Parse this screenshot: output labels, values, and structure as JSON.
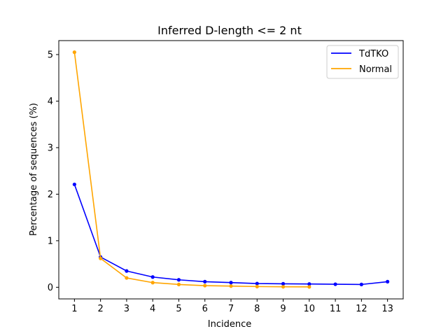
{
  "chart_data": {
    "type": "line",
    "title": "Inferred D-length <= 2 nt",
    "xlabel": "Incidence",
    "ylabel": "Percentage of sequences (%)",
    "xlim": [
      0.4,
      13.6
    ],
    "ylim": [
      -0.25,
      5.3
    ],
    "xticks": [
      1,
      2,
      3,
      4,
      5,
      6,
      7,
      8,
      9,
      10,
      11,
      12,
      13
    ],
    "yticks": [
      0,
      1,
      2,
      3,
      4,
      5
    ],
    "grid": false,
    "legend_position": "top-right",
    "series": [
      {
        "name": "TdTKO",
        "color": "#0000ff",
        "x": [
          1,
          2,
          3,
          4,
          5,
          6,
          7,
          8,
          9,
          10,
          11,
          12,
          13
        ],
        "y": [
          2.21,
          0.65,
          0.35,
          0.22,
          0.16,
          0.12,
          0.1,
          0.08,
          0.075,
          0.07,
          0.065,
          0.06,
          0.12
        ]
      },
      {
        "name": "Normal",
        "color": "#ffa500",
        "x": [
          1,
          2,
          3,
          4,
          5,
          6,
          7,
          8,
          9,
          10
        ],
        "y": [
          5.05,
          0.62,
          0.2,
          0.1,
          0.06,
          0.035,
          0.025,
          0.015,
          0.01,
          0.008
        ]
      }
    ]
  }
}
